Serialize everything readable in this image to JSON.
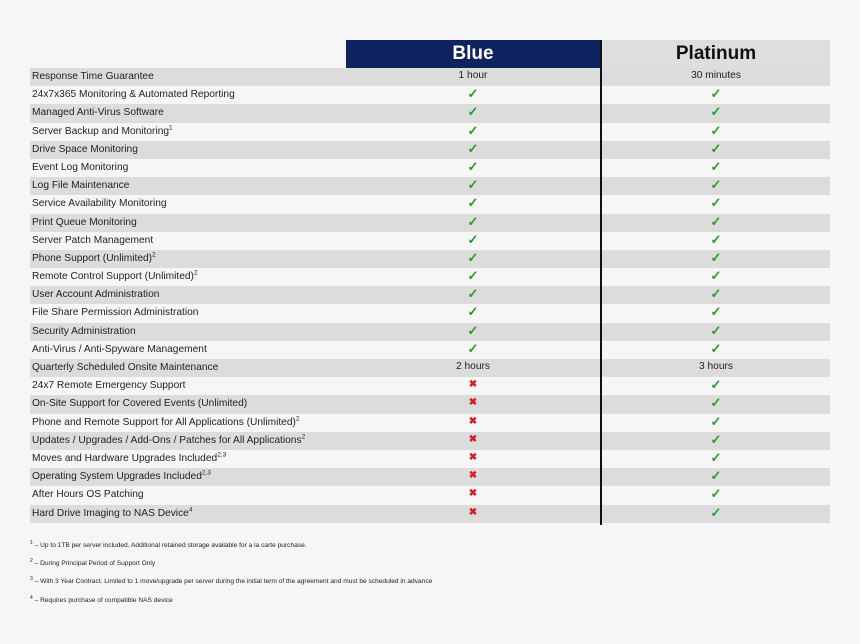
{
  "header": {
    "col1": "Blue",
    "col2": "Platinum"
  },
  "rows": [
    {
      "label": "Response Time Guarantee",
      "sup": "",
      "blue": "1 hour",
      "platinum": "30 minutes"
    },
    {
      "label": "24x7x365 Monitoring & Automated Reporting",
      "sup": "",
      "blue": "check",
      "platinum": "check"
    },
    {
      "label": "Managed Anti-Virus Software",
      "sup": "",
      "blue": "check",
      "platinum": "check"
    },
    {
      "label": "Server Backup and Monitoring",
      "sup": "1",
      "blue": "check",
      "platinum": "check"
    },
    {
      "label": "Drive Space Monitoring",
      "sup": "",
      "blue": "check",
      "platinum": "check"
    },
    {
      "label": "Event Log Monitoring",
      "sup": "",
      "blue": "check",
      "platinum": "check"
    },
    {
      "label": "Log File Maintenance",
      "sup": "",
      "blue": "check",
      "platinum": "check"
    },
    {
      "label": "Service Availability Monitoring",
      "sup": "",
      "blue": "check",
      "platinum": "check"
    },
    {
      "label": "Print Queue Monitoring",
      "sup": "",
      "blue": "check",
      "platinum": "check"
    },
    {
      "label": "Server Patch Management",
      "sup": "",
      "blue": "check",
      "platinum": "check"
    },
    {
      "label": "Phone Support (Unlimited)",
      "sup": "2",
      "blue": "check",
      "platinum": "check"
    },
    {
      "label": "Remote Control Support (Unlimited)",
      "sup": "2",
      "blue": "check",
      "platinum": "check"
    },
    {
      "label": "User Account Administration",
      "sup": "",
      "blue": "check",
      "platinum": "check"
    },
    {
      "label": "File Share Permission Administration",
      "sup": "",
      "blue": "check",
      "platinum": "check"
    },
    {
      "label": "Security Administration",
      "sup": "",
      "blue": "check",
      "platinum": "check"
    },
    {
      "label": "Anti-Virus / Anti-Spyware Management",
      "sup": "",
      "blue": "check",
      "platinum": "check"
    },
    {
      "label": "Quarterly Scheduled Onsite Maintenance",
      "sup": "",
      "blue": "2 hours",
      "platinum": "3 hours"
    },
    {
      "label": "24x7 Remote Emergency Support",
      "sup": "",
      "blue": "cross",
      "platinum": "check"
    },
    {
      "label": "On-Site Support for Covered Events (Unlimited)",
      "sup": "",
      "blue": "cross",
      "platinum": "check"
    },
    {
      "label": "Phone and Remote Support for All Applications (Unlimited)",
      "sup": "2",
      "blue": "cross",
      "platinum": "check"
    },
    {
      "label": "Updates / Upgrades / Add-Ons / Patches for All Applications",
      "sup": "2",
      "blue": "cross",
      "platinum": "check"
    },
    {
      "label": "Moves and Hardware Upgrades Included",
      "sup": "2,3",
      "blue": "cross",
      "platinum": "check"
    },
    {
      "label": "Operating System Upgrades Included",
      "sup": "2,3",
      "blue": "cross",
      "platinum": "check"
    },
    {
      "label": "After Hours OS Patching",
      "sup": "",
      "blue": "cross",
      "platinum": "check"
    },
    {
      "label": "Hard Drive Imaging to NAS Device",
      "sup": "4",
      "blue": "cross",
      "platinum": "check"
    }
  ],
  "symbols": {
    "check": "✓",
    "cross": "✖"
  },
  "colors": {
    "blue_header": "#0f2360",
    "platinum_header": "#dedede",
    "check": "#2a9a2a",
    "cross": "#d0202a"
  },
  "footnotes": [
    {
      "num": "1",
      "text": " – Up to 1TB per server included. Additional retained storage available for a la carte purchase."
    },
    {
      "num": "2",
      "text": " – During Principal Period of Support Only"
    },
    {
      "num": "3",
      "text": " – With 3 Year Contract. Limited to 1 move/upgrade per server during the initial term of the agreement and must be scheduled in advance"
    },
    {
      "num": "4",
      "text": " – Requires purchase of compatible NAS device"
    }
  ]
}
